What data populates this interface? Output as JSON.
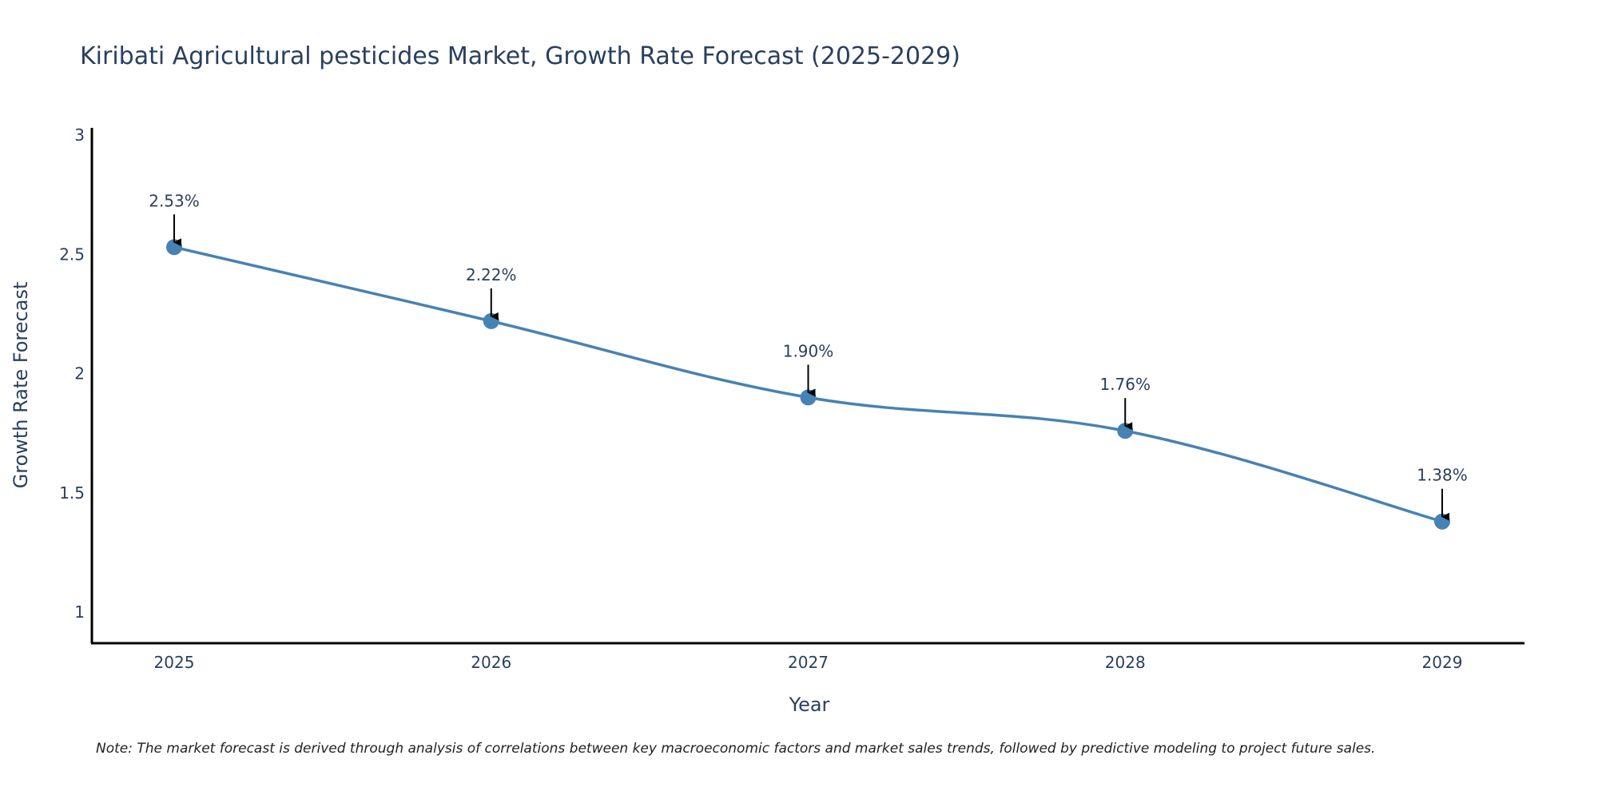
{
  "chart_data": {
    "type": "line",
    "title": "Kiribati Agricultural pesticides Market, Growth Rate Forecast (2025-2029)",
    "xlabel": "Year",
    "ylabel": "Growth Rate Forecast",
    "categories": [
      "2025",
      "2026",
      "2027",
      "2028",
      "2029"
    ],
    "values": [
      2.53,
      2.22,
      1.9,
      1.76,
      1.38
    ],
    "data_labels": [
      "2.53%",
      "2.22%",
      "1.90%",
      "1.76%",
      "1.38%"
    ],
    "ylim": [
      0.87,
      3.03
    ],
    "yticks": [
      1,
      1.5,
      2,
      2.5,
      3
    ],
    "ytick_labels": [
      "1",
      "1.5",
      "2",
      "2.5",
      "3"
    ],
    "grid": false,
    "line_color": "#4682b4",
    "marker_color": "#4682b4",
    "note": "Note: The market forecast is derived through analysis of correlations between key macroeconomic factors and market sales trends, followed by predictive modeling to project future sales."
  }
}
